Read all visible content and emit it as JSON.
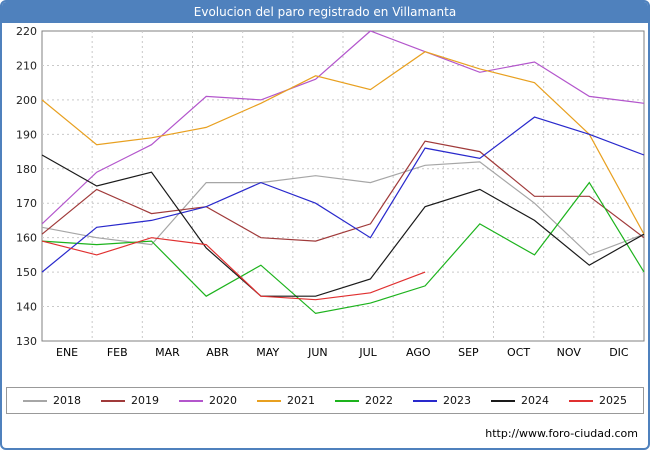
{
  "title": "Evolucion del paro registrado en Villamanta",
  "footer": {
    "url": "http://www.foro-ciudad.com"
  },
  "chart_data": {
    "type": "line",
    "title": "Evolucion del paro registrado en Villamanta",
    "categories": [
      "ENE",
      "FEB",
      "MAR",
      "ABR",
      "MAY",
      "JUN",
      "JUL",
      "AGO",
      "SEP",
      "OCT",
      "NOV",
      "DIC"
    ],
    "ylim": [
      130,
      220
    ],
    "ytick_step": 10,
    "grid": true,
    "legend_position": "bottom",
    "series": [
      {
        "name": "2018",
        "color": "#a6a6a6",
        "values": [
          163,
          160,
          158,
          176,
          176,
          178,
          176,
          181,
          182,
          170,
          155,
          161
        ]
      },
      {
        "name": "2019",
        "color": "#a03a3a",
        "values": [
          161,
          174,
          167,
          169,
          160,
          159,
          164,
          188,
          185,
          172,
          172,
          160
        ]
      },
      {
        "name": "2020",
        "color": "#b356cc",
        "values": [
          164,
          179,
          187,
          201,
          200,
          206,
          220,
          214,
          208,
          211,
          201,
          199
        ]
      },
      {
        "name": "2021",
        "color": "#e8a020",
        "values": [
          200,
          187,
          189,
          192,
          199,
          207,
          203,
          214,
          209,
          205,
          190,
          161
        ]
      },
      {
        "name": "2022",
        "color": "#1db31d",
        "values": [
          159,
          158,
          159,
          143,
          152,
          138,
          141,
          146,
          164,
          155,
          176,
          150
        ]
      },
      {
        "name": "2023",
        "color": "#2929cc",
        "values": [
          150,
          163,
          165,
          169,
          176,
          170,
          160,
          186,
          183,
          195,
          190,
          184
        ]
      },
      {
        "name": "2024",
        "color": "#1a1a1a",
        "values": [
          184,
          175,
          179,
          157,
          143,
          143,
          148,
          169,
          174,
          165,
          152,
          161
        ]
      },
      {
        "name": "2025",
        "color": "#e03030",
        "values": [
          159,
          155,
          160,
          158,
          143,
          142,
          144,
          150
        ]
      }
    ]
  }
}
